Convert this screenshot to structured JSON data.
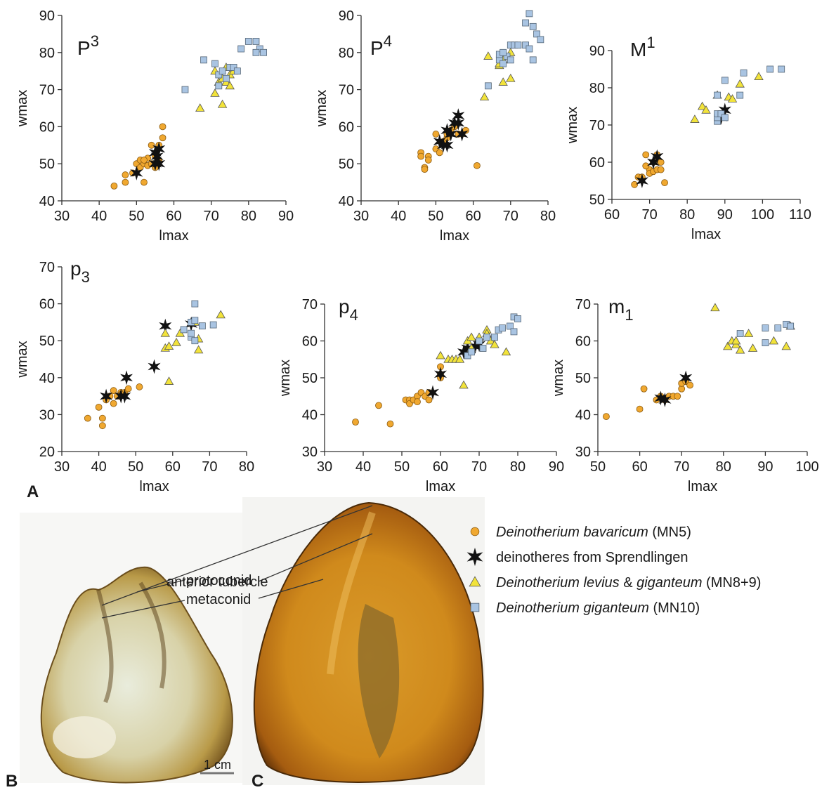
{
  "chart_data": [
    {
      "type": "scatter",
      "title_base": "P",
      "title_superscript": "3",
      "x_label": "lmax",
      "y_label": "wmax",
      "xlim": [
        30,
        90
      ],
      "xticks": [
        30,
        40,
        50,
        60,
        70,
        80,
        90
      ],
      "ylim": [
        40,
        90
      ],
      "yticks": [
        40,
        50,
        60,
        70,
        80,
        90
      ],
      "series": [
        {
          "x": [
            44,
            47,
            47,
            49,
            50,
            51,
            52,
            51,
            52,
            53,
            53,
            54,
            54,
            55,
            56,
            56,
            57,
            57,
            55,
            52
          ],
          "y": [
            44,
            45,
            47,
            47.5,
            50,
            49,
            45,
            51,
            50,
            51.5,
            49.5,
            50,
            55,
            52,
            55,
            51,
            57,
            60,
            49,
            51
          ]
        },
        {
          "x": [
            50,
            55,
            55,
            56,
            56,
            55.5
          ],
          "y": [
            47.5,
            50,
            53,
            54,
            50,
            52
          ]
        },
        {
          "x": [
            67,
            71,
            71,
            72,
            73,
            73,
            74,
            74,
            75,
            75,
            76
          ],
          "y": [
            65,
            69,
            75,
            72,
            66,
            73,
            72,
            76,
            71,
            74,
            75
          ]
        },
        {
          "x": [
            63,
            68,
            71,
            72,
            72,
            73,
            74,
            75,
            76,
            77,
            78,
            80,
            82,
            83,
            84,
            82
          ],
          "y": [
            70,
            78,
            77,
            74,
            71,
            75,
            73,
            76,
            76,
            75,
            81,
            83,
            83,
            81,
            80,
            80
          ]
        }
      ]
    },
    {
      "type": "scatter",
      "title_base": "P",
      "title_superscript": "4",
      "x_label": "lmax",
      "y_label": "wmax",
      "xlim": [
        30,
        80
      ],
      "xticks": [
        30,
        40,
        50,
        60,
        70,
        80
      ],
      "ylim": [
        40,
        90
      ],
      "yticks": [
        40,
        50,
        60,
        70,
        80,
        90
      ],
      "series": [
        {
          "x": [
            46,
            46,
            47,
            47,
            48,
            50,
            50,
            51,
            52,
            53,
            54,
            55,
            56,
            57,
            58,
            61,
            48,
            53
          ],
          "y": [
            53,
            52,
            49,
            48.5,
            52,
            54,
            58,
            53,
            56,
            57,
            59,
            60,
            58,
            58,
            59,
            49.5,
            51,
            58
          ]
        },
        {
          "x": [
            51,
            53,
            54,
            55,
            56,
            56,
            57,
            53,
            52
          ],
          "y": [
            56,
            55,
            58,
            61,
            63,
            61,
            58,
            59,
            55
          ]
        },
        {
          "x": [
            63,
            64,
            67,
            68,
            68,
            70,
            70,
            67
          ],
          "y": [
            68,
            79,
            76.5,
            72,
            78,
            73,
            80,
            77
          ]
        },
        {
          "x": [
            64,
            67,
            67,
            68,
            69,
            70,
            70,
            71,
            72,
            74,
            74,
            75,
            75,
            76,
            76,
            77,
            78,
            68
          ],
          "y": [
            71,
            78,
            79.5,
            77,
            79,
            78,
            82,
            82,
            82,
            82,
            88,
            90.5,
            81,
            87,
            78,
            85,
            83.5,
            80
          ]
        }
      ]
    },
    {
      "type": "scatter",
      "title_base": "M",
      "title_superscript": "1",
      "x_label": "lmax",
      "y_label": "wmax",
      "xlim": [
        60,
        110
      ],
      "xticks": [
        60,
        70,
        80,
        90,
        100,
        110
      ],
      "ylim": [
        50,
        90
      ],
      "yticks": [
        50,
        60,
        70,
        80,
        90
      ],
      "series": [
        {
          "x": [
            66,
            67,
            68,
            69,
            70,
            70,
            71,
            71,
            72,
            73,
            73,
            74,
            72,
            69
          ],
          "y": [
            54,
            56,
            56,
            62,
            58,
            57,
            60,
            57.5,
            58,
            58,
            60,
            54.5,
            62,
            59
          ]
        },
        {
          "x": [
            68,
            71,
            72,
            90,
            89
          ],
          "y": [
            55,
            60,
            61.5,
            74,
            72
          ]
        },
        {
          "x": [
            82,
            84,
            85,
            88,
            91,
            92,
            94,
            99
          ],
          "y": [
            71.5,
            75,
            74,
            78,
            77.5,
            77,
            81,
            83
          ]
        },
        {
          "x": [
            88,
            88,
            88,
            88,
            89,
            90,
            90,
            94,
            95,
            102,
            105
          ],
          "y": [
            71,
            72,
            73,
            78,
            73,
            72,
            82,
            78,
            84,
            85,
            85
          ]
        }
      ]
    },
    {
      "type": "scatter",
      "title_base": "p",
      "title_subscript": "3",
      "x_label": "lmax",
      "y_label": "wmax",
      "xlim": [
        30,
        80
      ],
      "xticks": [
        30,
        40,
        50,
        60,
        70,
        80
      ],
      "ylim": [
        20,
        70
      ],
      "yticks": [
        20,
        30,
        40,
        50,
        60,
        70
      ],
      "series": [
        {
          "x": [
            37,
            40,
            41,
            41,
            42,
            43,
            44,
            44,
            45,
            46,
            47,
            48,
            51,
            46
          ],
          "y": [
            29,
            32,
            29,
            27,
            34,
            35,
            33,
            36.5,
            35,
            36,
            36,
            37,
            37.5,
            35.5
          ]
        },
        {
          "x": [
            42,
            46,
            47,
            47.5,
            55,
            58,
            65
          ],
          "y": [
            35,
            35,
            35,
            40,
            43,
            54,
            54.5
          ]
        },
        {
          "x": [
            58,
            58,
            59,
            59,
            61,
            62,
            66,
            67,
            67,
            73
          ],
          "y": [
            48,
            52,
            39,
            48.5,
            49.5,
            52,
            55,
            47.5,
            50.5,
            57
          ]
        },
        {
          "x": [
            63,
            65,
            65,
            65,
            66,
            66,
            66,
            68,
            71
          ],
          "y": [
            53,
            51,
            52,
            55,
            60,
            50,
            55.5,
            54,
            54.3
          ]
        }
      ]
    },
    {
      "type": "scatter",
      "title_base": "p",
      "title_subscript": "4",
      "x_label": "lmax",
      "y_label": "wmax",
      "xlim": [
        30,
        90
      ],
      "xticks": [
        30,
        40,
        50,
        60,
        70,
        80,
        90
      ],
      "ylim": [
        30,
        70
      ],
      "yticks": [
        30,
        40,
        50,
        60,
        70
      ],
      "series": [
        {
          "x": [
            38,
            44,
            47,
            51,
            52,
            52,
            53,
            54,
            54,
            55,
            56,
            57,
            57,
            60,
            60,
            60
          ],
          "y": [
            38,
            42.5,
            37.5,
            44,
            44,
            43,
            44,
            45,
            43.5,
            46,
            45,
            44,
            46,
            53,
            50,
            51
          ]
        },
        {
          "x": [
            58,
            60,
            66,
            67,
            70,
            69
          ],
          "y": [
            46,
            51,
            57,
            58,
            59,
            58.5
          ]
        },
        {
          "x": [
            60,
            62,
            63,
            64,
            65,
            66,
            67,
            68,
            68,
            70,
            72,
            72,
            73,
            74,
            77
          ],
          "y": [
            56,
            55,
            55,
            55,
            55,
            48,
            60,
            58,
            61,
            61,
            63,
            62,
            60,
            59,
            57
          ]
        },
        {
          "x": [
            67,
            68,
            70,
            71,
            72,
            74,
            75,
            76,
            78,
            79,
            80,
            79
          ],
          "y": [
            56,
            57,
            60,
            58,
            61,
            61,
            63,
            63.5,
            64,
            66.5,
            66,
            62.5
          ]
        }
      ]
    },
    {
      "type": "scatter",
      "title_base": "m",
      "title_subscript": "1",
      "x_label": "lmax",
      "y_label": "wmax",
      "xlim": [
        50,
        100
      ],
      "xticks": [
        50,
        60,
        70,
        80,
        90,
        100
      ],
      "ylim": [
        30,
        70
      ],
      "yticks": [
        30,
        40,
        50,
        60,
        70
      ],
      "series": [
        {
          "x": [
            52,
            60,
            61,
            64,
            65,
            66,
            67,
            68,
            69,
            70,
            70,
            71,
            72
          ],
          "y": [
            39.5,
            41.5,
            47,
            44,
            45,
            44,
            45,
            45,
            45,
            47,
            48.5,
            49,
            48
          ]
        },
        {
          "x": [
            65,
            66,
            71
          ],
          "y": [
            44.5,
            44,
            50
          ]
        },
        {
          "x": [
            78,
            81,
            82,
            83,
            84,
            86,
            87,
            92,
            95,
            96,
            83
          ],
          "y": [
            69,
            58.5,
            60,
            59,
            57.5,
            62,
            58,
            60,
            58.5,
            64,
            60
          ]
        },
        {
          "x": [
            90,
            90,
            93,
            95,
            96,
            84
          ],
          "y": [
            63.5,
            59.5,
            63.5,
            64.5,
            64,
            62
          ]
        }
      ]
    }
  ],
  "legend": {
    "entries": [
      {
        "marker": "circle",
        "color": "#f0a830",
        "parts": [
          {
            "text": "Deinotherium bavaricum",
            "italic": true
          },
          {
            "text": " (MN5)",
            "italic": false
          }
        ]
      },
      {
        "marker": "star",
        "color": "#111111",
        "parts": [
          {
            "text": "deinotheres from Sprendlingen",
            "italic": false
          }
        ]
      },
      {
        "marker": "triangle",
        "color": "#f2e33a",
        "parts": [
          {
            "text": "Deinotherium levius",
            "italic": true
          },
          {
            "text": " & ",
            "italic": false
          },
          {
            "text": "giganteum",
            "italic": true
          },
          {
            "text": " (MN8+9)",
            "italic": false
          }
        ]
      },
      {
        "marker": "square",
        "color": "#a9c4e2",
        "parts": [
          {
            "text": "Deinotherium giganteum",
            "italic": true
          },
          {
            "text": " (MN10)",
            "italic": false
          }
        ]
      }
    ]
  },
  "annotations": {
    "panel_a": "A",
    "panel_b": "B",
    "panel_c": "C",
    "labels": [
      "anterior tubercle",
      "protoconid",
      "metaconid"
    ],
    "scale_bar": "1 cm"
  }
}
